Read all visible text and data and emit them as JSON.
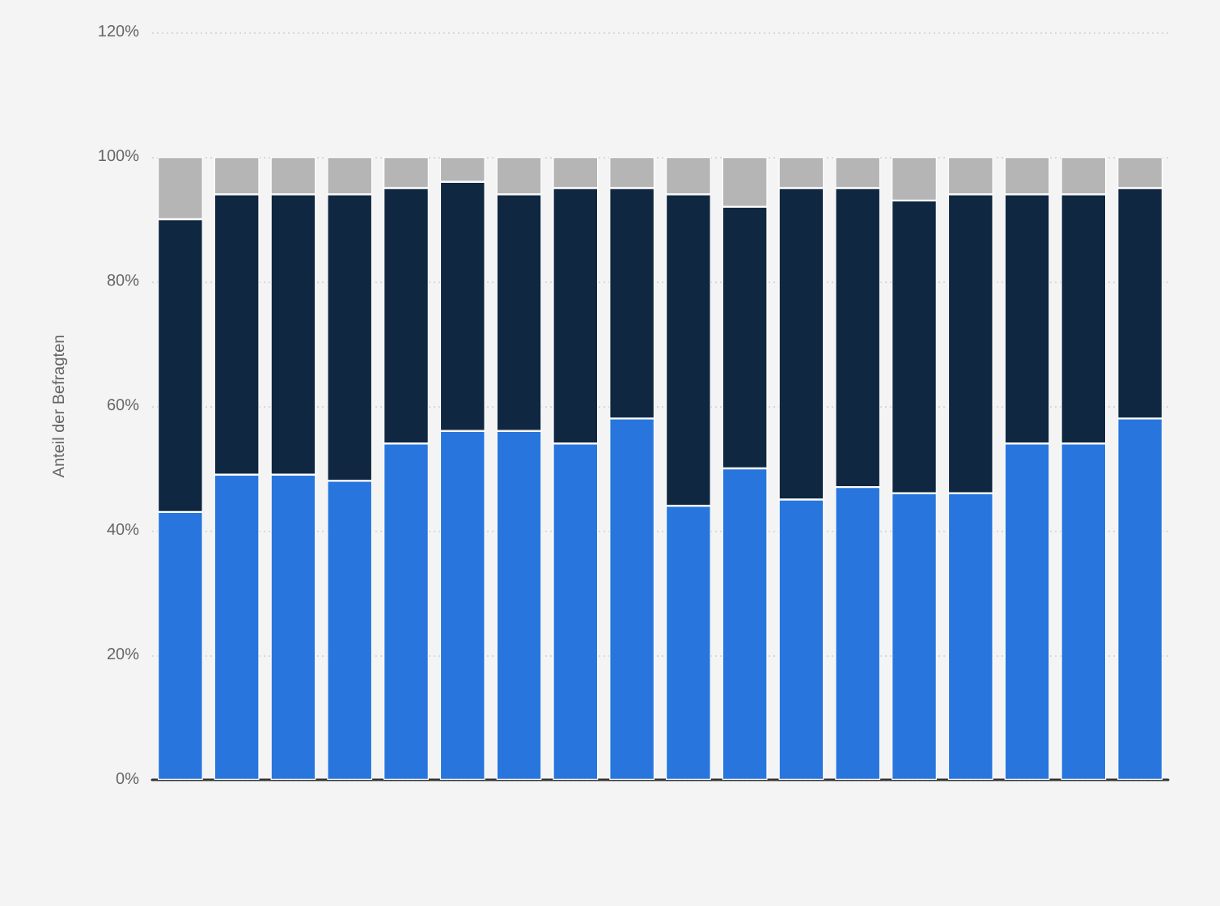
{
  "chart_data": {
    "type": "bar",
    "stacked": true,
    "ylabel": "Anteil der Befragten",
    "categories": [
      null,
      null,
      null,
      null,
      null,
      null,
      null,
      null,
      null,
      null,
      null,
      null,
      null,
      null,
      null,
      null,
      null,
      null
    ],
    "series": [
      {
        "color": "#2876dd",
        "values": [
          43,
          49,
          49,
          48,
          54,
          56,
          56,
          54,
          58,
          44,
          50,
          45,
          47,
          46,
          46,
          54,
          54,
          58
        ]
      },
      {
        "color": "#0f2741",
        "values": [
          47,
          45,
          45,
          46,
          41,
          40,
          38,
          41,
          37,
          50,
          42,
          50,
          48,
          47,
          48,
          40,
          40,
          37
        ]
      },
      {
        "color": "#b5b5b5",
        "values": [
          10,
          6,
          6,
          6,
          5,
          4,
          6,
          5,
          5,
          6,
          8,
          5,
          5,
          7,
          6,
          6,
          6,
          5
        ]
      }
    ],
    "ylim": [
      0,
      120
    ],
    "yticks": [
      {
        "value": 0,
        "label": "0%"
      },
      {
        "value": 20,
        "label": "20%"
      },
      {
        "value": 40,
        "label": "40%"
      },
      {
        "value": 60,
        "label": "60%"
      },
      {
        "value": 80,
        "label": "80%"
      },
      {
        "value": 100,
        "label": "100%"
      },
      {
        "value": 120,
        "label": "120%"
      }
    ],
    "grid": "y",
    "legend": false
  }
}
